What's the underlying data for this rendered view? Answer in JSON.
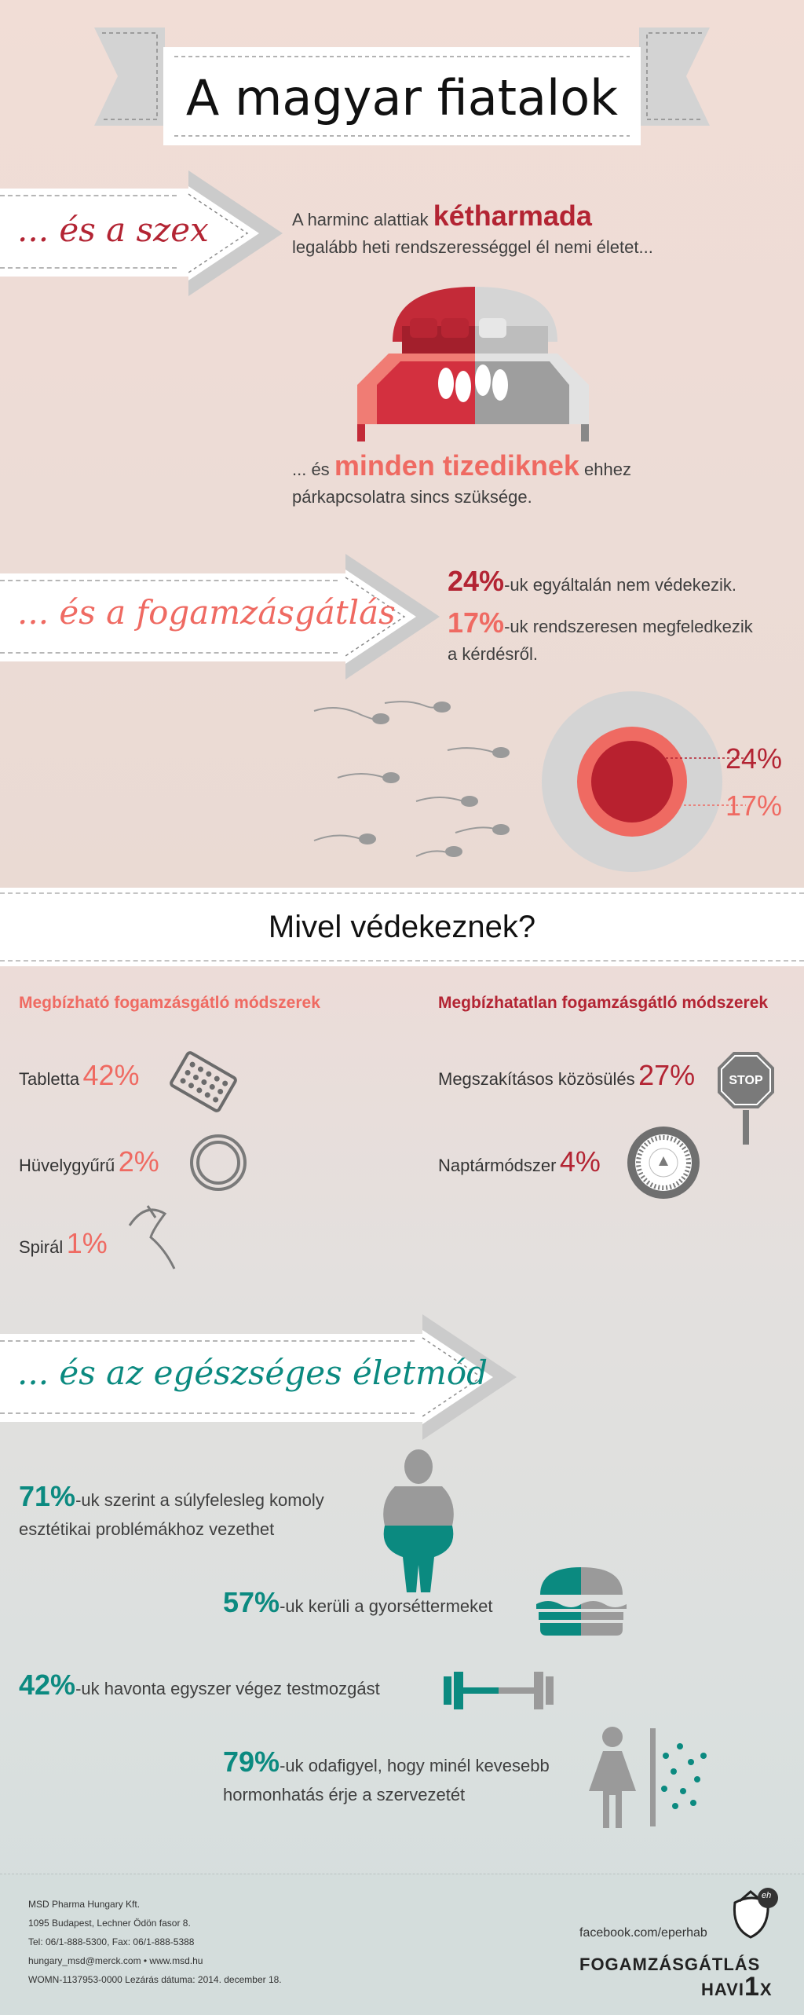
{
  "title": "A magyar fiatalok",
  "section_sex": {
    "heading": "... és a szex",
    "line1_prefix": "A harminc alattiak",
    "line1_highlight": "kétharmada",
    "line2": "legalább heti rendszerességgel él nemi életet...",
    "line3_prefix": "... és",
    "line3_highlight": "minden tizediknek",
    "line3_suffix": "ehhez",
    "line4": "párkapcsolatra sincs szüksége."
  },
  "section_contraception": {
    "heading": "... és a fogamzásgátlás",
    "stat1_pct": "24%",
    "stat1_text": "-uk egyáltalán nem védekezik.",
    "stat2_pct": "17%",
    "stat2_text": "-uk rendszeresen megfeledkezik",
    "stat2_text2": "a kérdésről.",
    "ring_label1": "24%",
    "ring_label2": "17%"
  },
  "section_methods": {
    "heading": "Mivel védekeznek?",
    "reliable_title": "Megbízható fogamzásgátló módszerek",
    "unreliable_title": "Megbízhatatlan fogamzásgátló módszerek",
    "reliable": [
      {
        "label": "Tabletta",
        "pct": "42%"
      },
      {
        "label": "Hüvelygyűrű",
        "pct": "2%"
      },
      {
        "label": "Spirál",
        "pct": "1%"
      }
    ],
    "unreliable": [
      {
        "label": "Megszakításos közösülés",
        "pct": "27%"
      },
      {
        "label": "Naptármódszer",
        "pct": "4%"
      }
    ],
    "stop_sign": "STOP"
  },
  "section_health": {
    "heading": "... és az egészséges életmód",
    "stats": [
      {
        "pct": "71%",
        "text": "-uk szerint a súlyfelesleg komoly",
        "text2": "esztétikai problémákhoz vezethet"
      },
      {
        "pct": "57%",
        "text": "-uk kerüli a gyorséttermeket",
        "text2": ""
      },
      {
        "pct": "42%",
        "text": "-uk havonta egyszer végez testmozgást",
        "text2": ""
      },
      {
        "pct": "79%",
        "text": "-uk odafigyel, hogy minél kevesebb",
        "text2": "hormonhatás érje a szervezetét"
      }
    ]
  },
  "footer": {
    "company": "MSD Pharma Hungary Kft.",
    "address": "1095 Budapest, Lechner Ödön fasor 8.",
    "phone": "Tel: 06/1-888-5300, Fax: 06/1-888-5388",
    "web": "hungary_msd@merck.com • www.msd.hu",
    "code": "WOMN-1137953-0000 Lezárás dátuma: 2014. december 18.",
    "facebook": "facebook.com/eperhab",
    "brand_line1": "FOGAMZÁSGÁTLÁS",
    "brand_line2_a": "HAVI",
    "brand_line2_b": "1",
    "brand_line2_c": "X",
    "logo_letters": "eh"
  },
  "colors": {
    "dark_red": "#b32433",
    "salmon": "#ef6a62",
    "teal": "#0b8a80",
    "grey": "#9c9c9c"
  }
}
